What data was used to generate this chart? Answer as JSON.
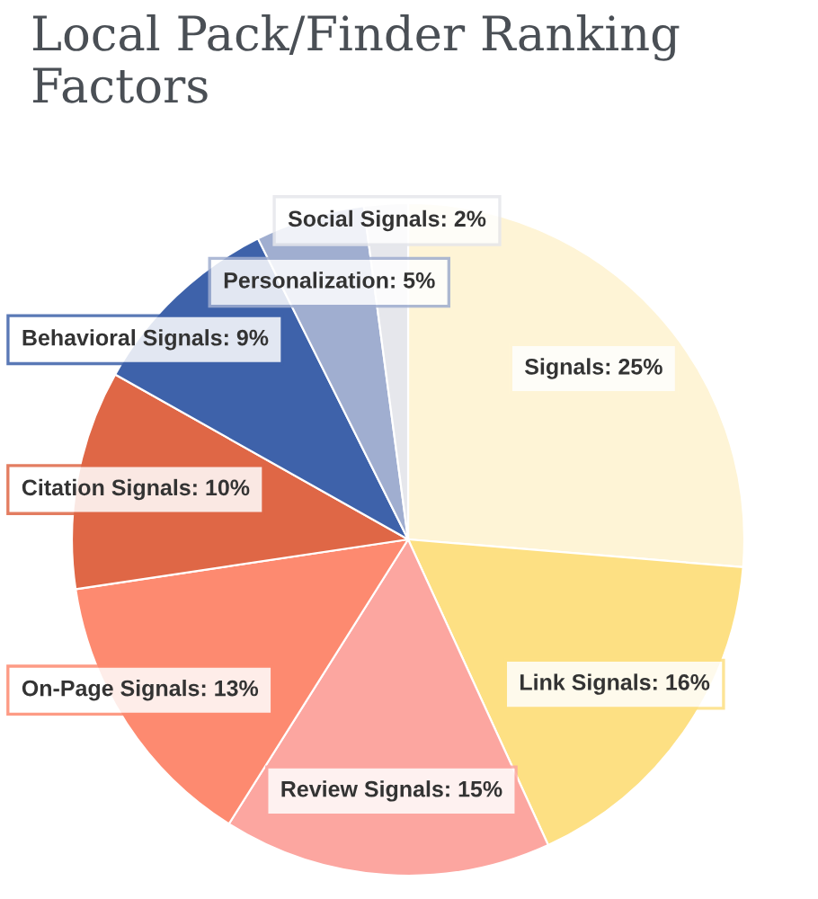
{
  "chart_data": {
    "type": "pie",
    "title": "Local Pack/Finder Ranking Factors",
    "categories": [
      "Signals",
      "Link Signals",
      "Review Signals",
      "On-Page Signals",
      "Citation Signals",
      "Behavioral Signals",
      "Personalization",
      "Social Signals"
    ],
    "values": [
      25,
      16,
      15,
      13,
      10,
      9,
      5,
      2
    ],
    "colors": [
      "#fef4d6",
      "#fde083",
      "#fca6a0",
      "#fd8a70",
      "#df6746",
      "#3e62aa",
      "#a0aed0",
      "#e6e7ec"
    ],
    "value_labels": [
      "25%",
      "16%",
      "15%",
      "13%",
      "10%",
      "9%",
      "5%",
      "2%"
    ]
  }
}
